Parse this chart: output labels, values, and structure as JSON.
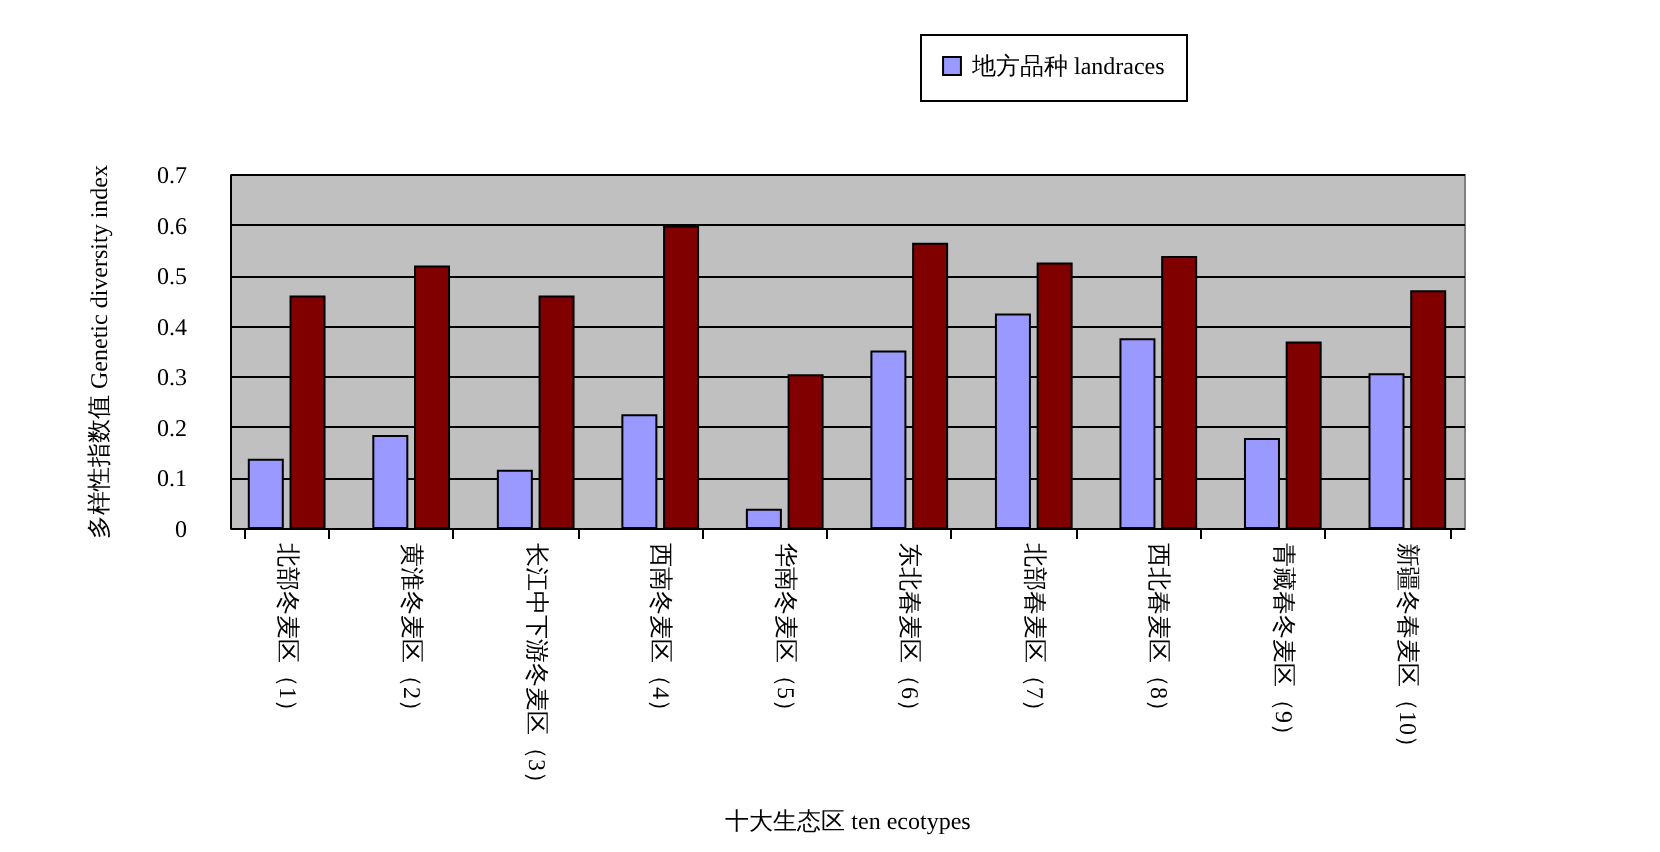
{
  "chart_data": {
    "type": "bar",
    "xlabel": "十大生态区 ten ecotypes",
    "ylabel": "多样性指数值 Genetic diversity index",
    "categories": [
      "北部冬麦区（1）",
      "黄淮冬麦区（2）",
      "长江中下游冬麦区（3）",
      "西南冬麦区（4）",
      "华南冬麦区（5）",
      "东北春麦区（6）",
      "北部春麦区（7）",
      "西北春麦区（8）",
      "青藏春冬麦区（9）",
      "新疆冬春麦区（10）"
    ],
    "series": [
      {
        "name": "地方品种 landraces",
        "color": "#9999ff",
        "values": [
          0.135,
          0.182,
          0.113,
          0.223,
          0.036,
          0.349,
          0.422,
          0.373,
          0.176,
          0.304
        ]
      },
      {
        "color": "#800000",
        "values": [
          0.458,
          0.517,
          0.458,
          0.596,
          0.302,
          0.562,
          0.523,
          0.536,
          0.367,
          0.468
        ]
      }
    ],
    "ylim": [
      0,
      0.7
    ],
    "yticks": [
      0,
      0.1,
      0.2,
      0.3,
      0.4,
      0.5,
      0.6,
      0.7
    ],
    "grid": "y",
    "legend": "top right"
  }
}
